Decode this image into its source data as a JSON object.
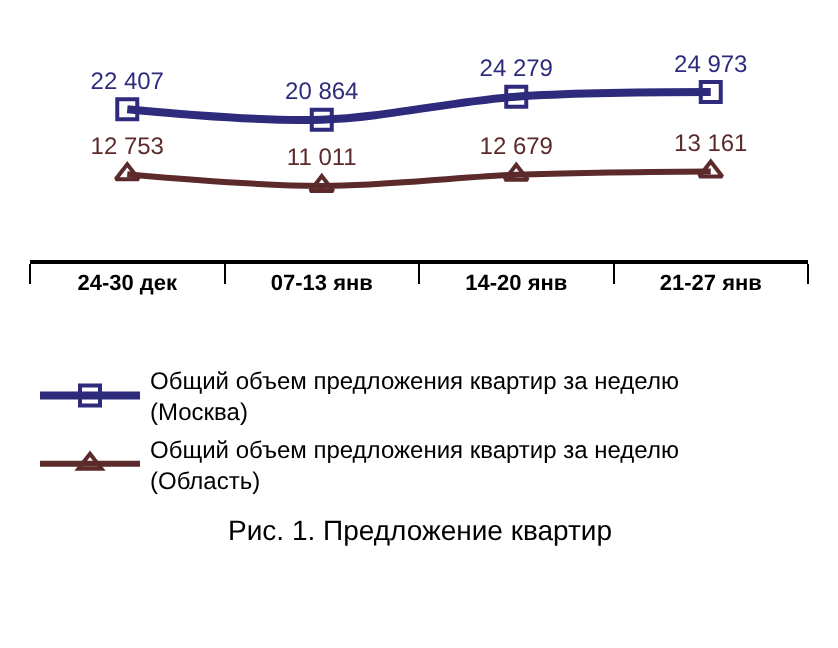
{
  "chart_data": {
    "type": "line",
    "categories": [
      "24-30 дек",
      "07-13 янв",
      "14-20 янв",
      "21-27 янв"
    ],
    "series": [
      {
        "name": "Общий объем предложения квартир за неделю (Москва)",
        "color": "#2e2b7c",
        "values": [
          22407,
          20864,
          24279,
          24973
        ],
        "marker": "square"
      },
      {
        "name": "Общий объем предложения квартир за неделю (Область)",
        "color": "#5c2a2a",
        "values": [
          12753,
          11011,
          12679,
          13161
        ],
        "marker": "triangle"
      }
    ],
    "data_labels": true,
    "legend": "bottom",
    "annotations": [
      "Рис. 1. Предложение квартир"
    ]
  }
}
